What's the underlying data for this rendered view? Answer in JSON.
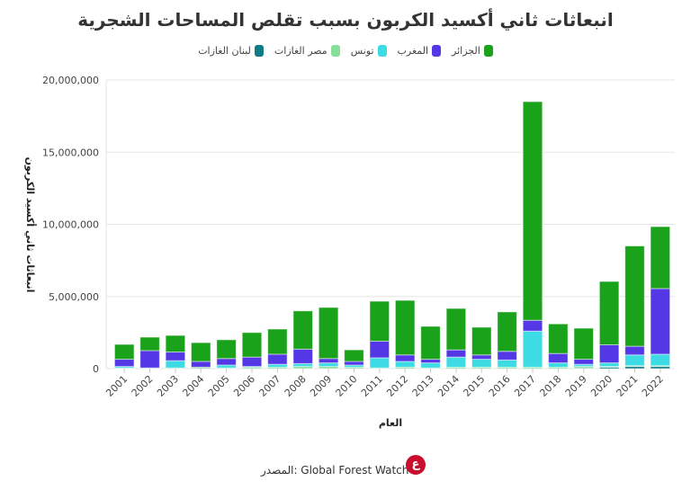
{
  "chart_data": {
    "type": "bar",
    "stacked": true,
    "title": "انبعاثات ثاني أكسيد الكربون بسبب تقلص المساحات الشجرية",
    "xlabel": "العام",
    "ylabel": "انبعاثات ثاني أكسيد الكربون",
    "ylim": [
      0,
      20000000
    ],
    "yticks": [
      "0",
      "5,000,000",
      "10,000,000",
      "15,000,000",
      "20,000,000"
    ],
    "grid": true,
    "legend": "top",
    "categories": [
      "2001",
      "2002",
      "2003",
      "2004",
      "2005",
      "2006",
      "2007",
      "2008",
      "2009",
      "2010",
      "2011",
      "2012",
      "2013",
      "2014",
      "2015",
      "2016",
      "2017",
      "2018",
      "2019",
      "2020",
      "2021",
      "2022"
    ],
    "series": [
      {
        "name": "لبنان الغازات",
        "color": "#0e7c86",
        "values": [
          0,
          0,
          0,
          0,
          0,
          0,
          0,
          0,
          0,
          0,
          0,
          0,
          0,
          0,
          0,
          0,
          0,
          0,
          50000,
          100000,
          150000,
          150000
        ]
      },
      {
        "name": "مصر الغازات",
        "color": "#86e09a",
        "values": [
          50000,
          30000,
          50000,
          100000,
          50000,
          100000,
          100000,
          150000,
          150000,
          100000,
          50000,
          100000,
          50000,
          100000,
          100000,
          100000,
          100000,
          100000,
          100000,
          50000,
          50000,
          50000
        ]
      },
      {
        "name": "تونس",
        "color": "#3ddbe3",
        "values": [
          100000,
          20000,
          500000,
          0,
          200000,
          50000,
          200000,
          200000,
          250000,
          150000,
          700000,
          400000,
          350000,
          700000,
          550000,
          500000,
          2500000,
          300000,
          150000,
          250000,
          750000,
          800000
        ]
      },
      {
        "name": "المغرب",
        "color": "#5438e6",
        "values": [
          500000,
          1200000,
          600000,
          400000,
          450000,
          650000,
          700000,
          1000000,
          300000,
          250000,
          1150000,
          450000,
          250000,
          500000,
          300000,
          600000,
          750000,
          650000,
          350000,
          1250000,
          600000,
          4550000
        ]
      },
      {
        "name": "الجزائر",
        "color": "#1aa31a",
        "values": [
          1030000,
          930000,
          1150000,
          1300000,
          1300000,
          1700000,
          1740000,
          2650000,
          3540000,
          800000,
          2770000,
          3780000,
          2280000,
          2870000,
          1920000,
          2730000,
          15150000,
          2050000,
          2150000,
          4390000,
          6950000,
          4290000
        ]
      }
    ]
  },
  "source": "المصدر: Global Forest Watch",
  "logo_text": "ع"
}
